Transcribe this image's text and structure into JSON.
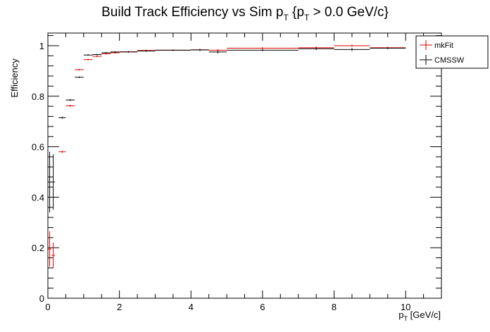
{
  "chart_data": {
    "type": "scatter",
    "title_main": "Build Track Efficiency vs Sim p",
    "title_sub1": "T",
    "title_mid": " {p",
    "title_sub2": "T",
    "title_end": " > 0.0 GeV/c}",
    "xlabel_main": "p",
    "xlabel_sub": "T",
    "xlabel_end": " [GeV/c]",
    "ylabel": "Efficiency",
    "xlim": [
      0,
      11
    ],
    "ylim": [
      0,
      1.05
    ],
    "x_ticks": [
      0,
      2,
      4,
      6,
      8,
      10
    ],
    "x_tick_labels": [
      "0",
      "2",
      "4",
      "6",
      "8",
      "10"
    ],
    "y_ticks": [
      0,
      0.2,
      0.4,
      0.6,
      0.8,
      1
    ],
    "y_tick_labels": [
      "0",
      "0.2",
      "0.4",
      "0.6",
      "0.8",
      "1"
    ],
    "legend_position": "top-right",
    "series": [
      {
        "name": "mkFit",
        "color": "#dd0000",
        "points": [
          {
            "x": 0.05,
            "xerr": 0.05,
            "y": 0.195,
            "yerr": 0.07
          },
          {
            "x": 0.15,
            "xerr": 0.05,
            "y": 0.17,
            "yerr": 0.05
          },
          {
            "x": 0.4,
            "xerr": 0.1,
            "y": 0.58,
            "yerr": 0.004
          },
          {
            "x": 0.625,
            "xerr": 0.125,
            "y": 0.762,
            "yerr": 0.004
          },
          {
            "x": 0.875,
            "xerr": 0.125,
            "y": 0.905,
            "yerr": 0.003
          },
          {
            "x": 1.125,
            "xerr": 0.125,
            "y": 0.945,
            "yerr": 0.003
          },
          {
            "x": 1.375,
            "xerr": 0.125,
            "y": 0.958,
            "yerr": 0.003
          },
          {
            "x": 1.625,
            "xerr": 0.125,
            "y": 0.968,
            "yerr": 0.003
          },
          {
            "x": 1.875,
            "xerr": 0.125,
            "y": 0.972,
            "yerr": 0.003
          },
          {
            "x": 2.25,
            "xerr": 0.25,
            "y": 0.976,
            "yerr": 0.003
          },
          {
            "x": 2.75,
            "xerr": 0.25,
            "y": 0.981,
            "yerr": 0.003
          },
          {
            "x": 3.5,
            "xerr": 0.5,
            "y": 0.982,
            "yerr": 0.003
          },
          {
            "x": 4.25,
            "xerr": 0.25,
            "y": 0.984,
            "yerr": 0.004
          },
          {
            "x": 4.75,
            "xerr": 0.25,
            "y": 0.982,
            "yerr": 0.004
          },
          {
            "x": 6.0,
            "xerr": 1.0,
            "y": 0.99,
            "yerr": 0.004
          },
          {
            "x": 7.5,
            "xerr": 0.5,
            "y": 0.992,
            "yerr": 0.005
          },
          {
            "x": 8.5,
            "xerr": 0.5,
            "y": 1.0,
            "yerr": 0.004
          },
          {
            "x": 9.5,
            "xerr": 0.5,
            "y": 0.992,
            "yerr": 0.004
          }
        ]
      },
      {
        "name": "CMSSW",
        "color": "#000000",
        "points": [
          {
            "x": 0.05,
            "xerr": 0.05,
            "y": 0.46,
            "yerr": 0.12
          },
          {
            "x": 0.15,
            "xerr": 0.05,
            "y": 0.46,
            "yerr": 0.11
          },
          {
            "x": 0.4,
            "xerr": 0.1,
            "y": 0.715,
            "yerr": 0.004
          },
          {
            "x": 0.625,
            "xerr": 0.125,
            "y": 0.785,
            "yerr": 0.004
          },
          {
            "x": 0.875,
            "xerr": 0.125,
            "y": 0.875,
            "yerr": 0.003
          },
          {
            "x": 1.125,
            "xerr": 0.125,
            "y": 0.963,
            "yerr": 0.003
          },
          {
            "x": 1.375,
            "xerr": 0.125,
            "y": 0.965,
            "yerr": 0.003
          },
          {
            "x": 1.625,
            "xerr": 0.125,
            "y": 0.972,
            "yerr": 0.003
          },
          {
            "x": 1.875,
            "xerr": 0.125,
            "y": 0.975,
            "yerr": 0.003
          },
          {
            "x": 2.25,
            "xerr": 0.25,
            "y": 0.975,
            "yerr": 0.003
          },
          {
            "x": 2.75,
            "xerr": 0.25,
            "y": 0.979,
            "yerr": 0.003
          },
          {
            "x": 3.5,
            "xerr": 0.5,
            "y": 0.982,
            "yerr": 0.003
          },
          {
            "x": 4.25,
            "xerr": 0.25,
            "y": 0.983,
            "yerr": 0.004
          },
          {
            "x": 4.75,
            "xerr": 0.25,
            "y": 0.975,
            "yerr": 0.006
          },
          {
            "x": 6.0,
            "xerr": 1.0,
            "y": 0.982,
            "yerr": 0.004
          },
          {
            "x": 7.5,
            "xerr": 0.5,
            "y": 0.988,
            "yerr": 0.005
          },
          {
            "x": 8.5,
            "xerr": 0.5,
            "y": 0.985,
            "yerr": 0.006
          },
          {
            "x": 9.5,
            "xerr": 0.5,
            "y": 0.99,
            "yerr": 0.004
          }
        ]
      }
    ]
  }
}
